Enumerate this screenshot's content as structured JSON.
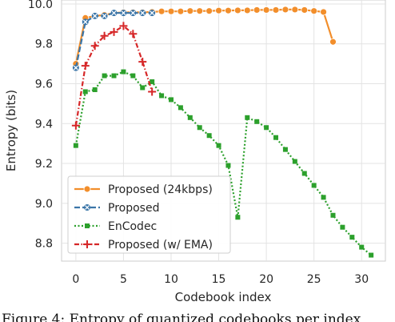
{
  "chart_data": {
    "type": "line",
    "xlabel": "Codebook index",
    "ylabel": "Entropy (bits)",
    "xlim": [
      -1.5,
      32.5
    ],
    "ylim": [
      8.71,
      10.02
    ],
    "xticks": [
      0,
      5,
      10,
      15,
      20,
      25,
      30
    ],
    "yticks": [
      8.8,
      9.0,
      9.2,
      9.4,
      9.6,
      9.8,
      10.0
    ],
    "grid": true,
    "legend_position": "lower-left",
    "series": [
      {
        "name": "Proposed (24kbps)",
        "color": "#f28e2b",
        "marker": "circle",
        "linestyle": "solid",
        "x": [
          0,
          1,
          2,
          3,
          4,
          5,
          6,
          7,
          8,
          9,
          10,
          11,
          12,
          13,
          14,
          15,
          16,
          17,
          18,
          19,
          20,
          21,
          22,
          23,
          24,
          25,
          26,
          27
        ],
        "y": [
          9.7,
          9.93,
          9.94,
          9.945,
          9.955,
          9.958,
          9.958,
          9.958,
          9.96,
          9.963,
          9.963,
          9.963,
          9.965,
          9.965,
          9.965,
          9.967,
          9.967,
          9.968,
          9.968,
          9.97,
          9.97,
          9.97,
          9.972,
          9.972,
          9.97,
          9.965,
          9.96,
          9.81
        ]
      },
      {
        "name": "Proposed",
        "color": "#3a75a8",
        "marker": "x-circle",
        "linestyle": "dashed",
        "x": [
          0,
          1,
          2,
          3,
          4,
          5,
          6,
          7,
          8
        ],
        "y": [
          9.68,
          9.91,
          9.94,
          9.94,
          9.955,
          9.955,
          9.955,
          9.955,
          9.955
        ]
      },
      {
        "name": "EnCodec",
        "color": "#2ca02c",
        "marker": "square",
        "linestyle": "dotted",
        "x": [
          0,
          1,
          2,
          3,
          4,
          5,
          6,
          7,
          8,
          9,
          10,
          11,
          12,
          13,
          14,
          15,
          16,
          17,
          18,
          19,
          20,
          21,
          22,
          23,
          24,
          25,
          26,
          27,
          28,
          29,
          30,
          31
        ],
        "y": [
          9.29,
          9.56,
          9.57,
          9.64,
          9.64,
          9.66,
          9.64,
          9.58,
          9.61,
          9.54,
          9.52,
          9.48,
          9.43,
          9.38,
          9.34,
          9.29,
          9.19,
          8.93,
          9.43,
          9.41,
          9.38,
          9.33,
          9.27,
          9.21,
          9.15,
          9.09,
          9.03,
          8.94,
          8.88,
          8.83,
          8.78,
          8.74
        ]
      },
      {
        "name": "Proposed (w/ EMA)",
        "color": "#d62728",
        "marker": "plus",
        "linestyle": "dashdot",
        "x": [
          0,
          1,
          2,
          3,
          4,
          5,
          6,
          7,
          8
        ],
        "y": [
          9.39,
          9.69,
          9.79,
          9.84,
          9.86,
          9.89,
          9.85,
          9.71,
          9.56
        ]
      }
    ]
  },
  "caption": "Figure 4: Entropy of quantized codebooks per index"
}
